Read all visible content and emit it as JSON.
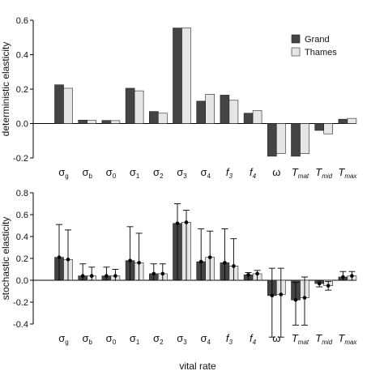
{
  "chart_data": [
    {
      "type": "bar",
      "ylabel": "deterministic elasticity",
      "xlabel": "",
      "ylim": [
        -0.2,
        0.6
      ],
      "yticks": [
        "0.6",
        "0.4",
        "0.2",
        "0.0",
        "-0.2"
      ],
      "ytick_values": [
        0.6,
        0.4,
        0.2,
        0.0,
        -0.2
      ],
      "legend_position": "top-right",
      "categories": [
        "σg",
        "σb",
        "σ0",
        "σ1",
        "σ2",
        "σ3",
        "σ4",
        "f3",
        "f4",
        "ω",
        "Tmat",
        "Tmid",
        "Tmax"
      ],
      "series": [
        {
          "name": "Grand",
          "color": "#444444",
          "values": [
            0.225,
            0.02,
            0.018,
            0.205,
            0.07,
            0.555,
            0.13,
            0.165,
            0.06,
            -0.19,
            -0.19,
            -0.04,
            0.025
          ]
        },
        {
          "name": "Thames",
          "color": "#e6e6e6",
          "values": [
            0.205,
            0.018,
            0.017,
            0.19,
            0.06,
            0.555,
            0.17,
            0.135,
            0.075,
            -0.175,
            -0.175,
            -0.06,
            0.03
          ]
        }
      ]
    },
    {
      "type": "bar",
      "ylabel": "stochastic elasticity",
      "xlabel": "vital rate",
      "ylim": [
        -0.4,
        0.8
      ],
      "yticks": [
        "0.8",
        "0.6",
        "0.4",
        "0.2",
        "0.0",
        "-0.2",
        "-0.4"
      ],
      "ytick_values": [
        0.8,
        0.6,
        0.4,
        0.2,
        0.0,
        -0.2,
        -0.4
      ],
      "error_bars": true,
      "categories": [
        "σg",
        "σb",
        "σ0",
        "σ1",
        "σ2",
        "σ3",
        "σ4",
        "f3",
        "f4",
        "ω",
        "Tmat",
        "Tmid",
        "Tmax"
      ],
      "series": [
        {
          "name": "Grand",
          "color": "#444444",
          "values": [
            0.21,
            0.04,
            0.04,
            0.18,
            0.06,
            0.52,
            0.17,
            0.16,
            0.05,
            -0.14,
            -0.18,
            -0.03,
            0.03
          ],
          "upper": [
            0.51,
            0.15,
            0.12,
            0.49,
            0.15,
            0.7,
            0.47,
            0.47,
            0.07,
            0.11,
            -0.02,
            0.0,
            0.08
          ],
          "lower": [
            0.0,
            0.0,
            0.0,
            0.0,
            0.0,
            0.0,
            0.0,
            0.0,
            0.0,
            -0.52,
            -0.41,
            -0.06,
            0.0
          ]
        },
        {
          "name": "Thames",
          "color": "#e6e6e6",
          "values": [
            0.19,
            0.04,
            0.04,
            0.16,
            0.06,
            0.53,
            0.21,
            0.13,
            0.06,
            -0.13,
            -0.16,
            -0.05,
            0.04
          ],
          "upper": [
            0.46,
            0.12,
            0.1,
            0.43,
            0.15,
            0.64,
            0.45,
            0.38,
            0.09,
            0.11,
            0.03,
            -0.01,
            0.08
          ],
          "lower": [
            0.0,
            0.0,
            0.0,
            0.0,
            0.0,
            0.0,
            0.0,
            0.0,
            0.0,
            -0.52,
            -0.41,
            -0.09,
            0.0
          ]
        }
      ]
    }
  ],
  "category_labels": [
    {
      "base": "σ",
      "sub": "g",
      "style": "normal"
    },
    {
      "base": "σ",
      "sub": "b",
      "style": "normal"
    },
    {
      "base": "σ",
      "sub": "0",
      "style": "normal"
    },
    {
      "base": "σ",
      "sub": "1",
      "style": "normal"
    },
    {
      "base": "σ",
      "sub": "2",
      "style": "normal"
    },
    {
      "base": "σ",
      "sub": "3",
      "style": "normal"
    },
    {
      "base": "σ",
      "sub": "4",
      "style": "normal"
    },
    {
      "base": "f",
      "sub": "3",
      "style": "italic"
    },
    {
      "base": "f",
      "sub": "4",
      "style": "italic"
    },
    {
      "base": "ω",
      "sub": "",
      "style": "normal"
    },
    {
      "base": "T",
      "sub": "mat",
      "style": "italic"
    },
    {
      "base": "T",
      "sub": "mid",
      "style": "italic"
    },
    {
      "base": "T",
      "sub": "max",
      "style": "italic"
    }
  ]
}
